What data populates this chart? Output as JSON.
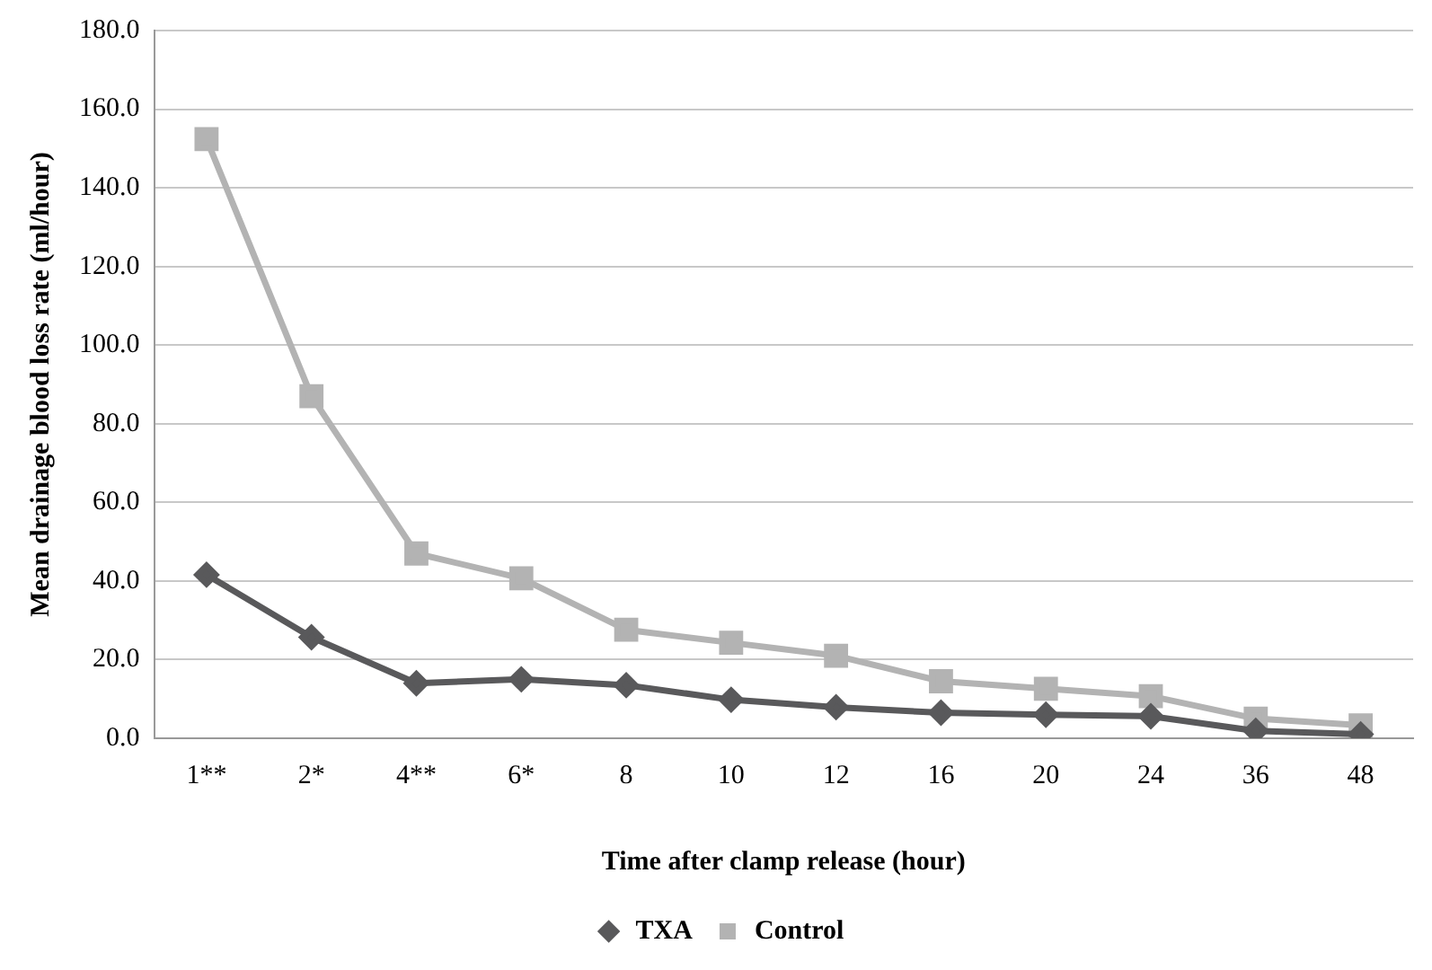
{
  "chart_data": {
    "type": "line",
    "xlabel": "Time after clamp release (hour)",
    "ylabel": "Mean drainage blood loss rate (ml/hour)",
    "categories": [
      "1**",
      "2*",
      "4**",
      "6*",
      "8",
      "10",
      "12",
      "16",
      "20",
      "24",
      "36",
      "48"
    ],
    "series": [
      {
        "name": "TXA",
        "color": "#59595b",
        "marker": "diamond",
        "values": [
          41.6,
          25.7,
          14.0,
          15.0,
          13.5,
          9.8,
          7.9,
          6.5,
          6.0,
          5.6,
          1.9,
          1.0
        ]
      },
      {
        "name": "Control",
        "color": "#b3b3b3",
        "marker": "square",
        "values": [
          152.4,
          87.0,
          47.0,
          40.7,
          27.6,
          24.3,
          21.0,
          14.5,
          12.6,
          10.7,
          5.0,
          3.3
        ]
      }
    ],
    "ylim": [
      0,
      180
    ],
    "yticks": [
      {
        "value": 0,
        "label": "0.0"
      },
      {
        "value": 20,
        "label": "20.0"
      },
      {
        "value": 40,
        "label": "40.0"
      },
      {
        "value": 60,
        "label": "60.0"
      },
      {
        "value": 80,
        "label": "80.0"
      },
      {
        "value": 100,
        "label": "100.0"
      },
      {
        "value": 120,
        "label": "120.0"
      },
      {
        "value": 140,
        "label": "140.0"
      },
      {
        "value": 160,
        "label": "160.0"
      },
      {
        "value": 180,
        "label": "180.0"
      }
    ],
    "grid": "y",
    "legend": "bottom",
    "line_style": "solid"
  }
}
